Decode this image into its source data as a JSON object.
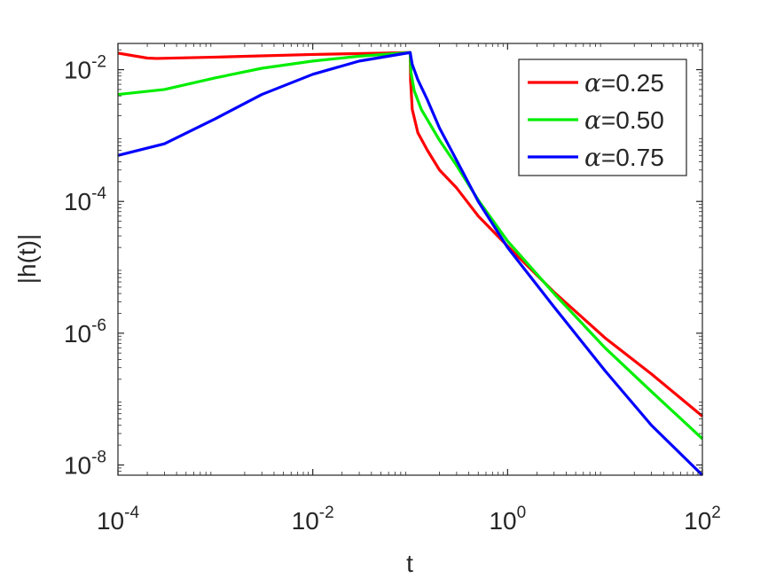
{
  "chart_data": {
    "type": "line",
    "xlabel": "t",
    "ylabel": "|h(t)|",
    "xscale": "log",
    "yscale": "log",
    "xlim": [
      0.0001,
      100
    ],
    "ylim": [
      7e-09,
      0.025
    ],
    "x_ticks": [
      {
        "value": 0.0001,
        "base": "10",
        "exp": "-4"
      },
      {
        "value": 0.01,
        "base": "10",
        "exp": "-2"
      },
      {
        "value": 1,
        "base": "10",
        "exp": "0"
      },
      {
        "value": 100,
        "base": "10",
        "exp": "2"
      }
    ],
    "y_ticks": [
      {
        "value": 1e-08,
        "base": "10",
        "exp": "-8"
      },
      {
        "value": 1e-06,
        "base": "10",
        "exp": "-6"
      },
      {
        "value": 0.0001,
        "base": "10",
        "exp": "-4"
      },
      {
        "value": 0.01,
        "base": "10",
        "exp": "-2"
      }
    ],
    "grid": false,
    "legend_position": "top-right",
    "series": [
      {
        "name": "α=0.25",
        "legend_symbol": "α",
        "legend_value": "=0.25",
        "color": "#ff0000",
        "points": [
          [
            0.0001,
            0.0178
          ],
          [
            0.0002,
            0.015
          ],
          [
            0.00025,
            0.0148
          ],
          [
            0.001,
            0.0155
          ],
          [
            0.01,
            0.017
          ],
          [
            0.05,
            0.0178
          ],
          [
            0.1,
            0.0182
          ],
          [
            0.101,
            0.0068
          ],
          [
            0.105,
            0.0025
          ],
          [
            0.12,
            0.0011
          ],
          [
            0.15,
            0.0006
          ],
          [
            0.2,
            0.0003
          ],
          [
            0.3,
            0.00016
          ],
          [
            0.5,
            6e-05
          ],
          [
            1,
            2.1e-05
          ],
          [
            3,
            4.2e-06
          ],
          [
            10,
            8.5e-07
          ],
          [
            30,
            2.4e-07
          ],
          [
            100,
            5.5e-08
          ]
        ]
      },
      {
        "name": "α=0.50",
        "legend_symbol": "α",
        "legend_value": "=0.50",
        "color": "#00ee00",
        "points": [
          [
            0.0001,
            0.0042
          ],
          [
            0.0003,
            0.005
          ],
          [
            0.001,
            0.0075
          ],
          [
            0.003,
            0.0105
          ],
          [
            0.01,
            0.0135
          ],
          [
            0.03,
            0.016
          ],
          [
            0.1,
            0.0182
          ],
          [
            0.102,
            0.009
          ],
          [
            0.11,
            0.0048
          ],
          [
            0.13,
            0.0025
          ],
          [
            0.2,
            0.00085
          ],
          [
            0.3,
            0.00035
          ],
          [
            0.5,
            0.000105
          ],
          [
            1,
            2.5e-05
          ],
          [
            3,
            4e-06
          ],
          [
            10,
            6e-07
          ],
          [
            30,
            1.3e-07
          ],
          [
            100,
            2.5e-08
          ]
        ]
      },
      {
        "name": "α=0.75",
        "legend_symbol": "α",
        "legend_value": "=0.75",
        "color": "#0000ff",
        "points": [
          [
            0.0001,
            0.0005
          ],
          [
            0.0003,
            0.00075
          ],
          [
            0.001,
            0.0018
          ],
          [
            0.003,
            0.0042
          ],
          [
            0.01,
            0.0085
          ],
          [
            0.03,
            0.0135
          ],
          [
            0.1,
            0.0182
          ],
          [
            0.105,
            0.012
          ],
          [
            0.12,
            0.007
          ],
          [
            0.15,
            0.0035
          ],
          [
            0.2,
            0.0013
          ],
          [
            0.3,
            0.00042
          ],
          [
            0.5,
            0.0001
          ],
          [
            1,
            2e-05
          ],
          [
            3,
            2.5e-06
          ],
          [
            10,
            2.7e-07
          ],
          [
            30,
            4e-08
          ],
          [
            100,
            7e-09
          ]
        ]
      }
    ]
  }
}
